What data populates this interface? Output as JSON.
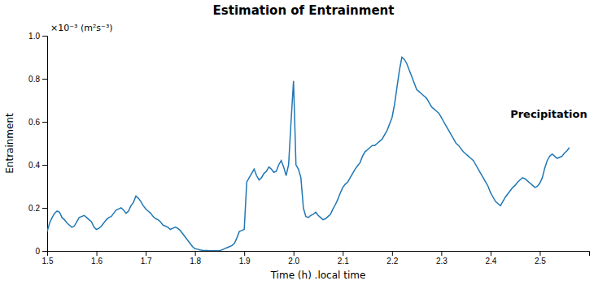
{
  "chart_data": {
    "type": "line",
    "title": "Estimation of Entrainment",
    "x_label": "Time (h) .local time",
    "y_label": "Entrainment",
    "annotations": [
      {
        "text": "×10⁻³ (m²s⁻³)"
      },
      {
        "text": "Precipitation",
        "x": 2.44,
        "y": 0.62
      }
    ],
    "xlim": [
      1.5,
      2.6
    ],
    "ylim": [
      0,
      1.0
    ],
    "xticks": [
      1.5,
      1.6,
      1.7,
      1.8,
      1.9,
      {
        "value": 2.0,
        "label": "2.0"
      },
      2.1,
      2.2,
      2.3,
      2.4,
      2.5
    ],
    "yticks": [
      0,
      0.2,
      0.4,
      0.6,
      0.8,
      {
        "value": 1.0,
        "label": "1.0"
      }
    ],
    "grid": false,
    "x": [
      1.5,
      1.505,
      1.51,
      1.515,
      1.52,
      1.525,
      1.53,
      1.535,
      1.54,
      1.545,
      1.55,
      1.555,
      1.56,
      1.565,
      1.57,
      1.575,
      1.58,
      1.585,
      1.59,
      1.595,
      1.6,
      1.605,
      1.61,
      1.615,
      1.62,
      1.625,
      1.63,
      1.635,
      1.64,
      1.645,
      1.65,
      1.655,
      1.66,
      1.665,
      1.67,
      1.675,
      1.68,
      1.685,
      1.69,
      1.695,
      1.7,
      1.705,
      1.71,
      1.715,
      1.72,
      1.725,
      1.73,
      1.735,
      1.74,
      1.745,
      1.75,
      1.755,
      1.76,
      1.765,
      1.77,
      1.775,
      1.78,
      1.785,
      1.79,
      1.795,
      1.8,
      1.805,
      1.81,
      1.815,
      1.82,
      1.825,
      1.83,
      1.835,
      1.84,
      1.845,
      1.85,
      1.855,
      1.86,
      1.865,
      1.87,
      1.875,
      1.88,
      1.885,
      1.89,
      1.895,
      1.9,
      1.905,
      1.91,
      1.915,
      1.92,
      1.925,
      1.93,
      1.935,
      1.94,
      1.945,
      1.95,
      1.955,
      1.96,
      1.965,
      1.97,
      1.975,
      1.98,
      1.985,
      1.99,
      1.995,
      2.0,
      2.005,
      2.01,
      2.015,
      2.02,
      2.025,
      2.03,
      2.035,
      2.04,
      2.045,
      2.05,
      2.055,
      2.06,
      2.065,
      2.07,
      2.075,
      2.08,
      2.085,
      2.09,
      2.095,
      2.1,
      2.105,
      2.11,
      2.115,
      2.12,
      2.125,
      2.13,
      2.135,
      2.14,
      2.145,
      2.15,
      2.155,
      2.16,
      2.165,
      2.17,
      2.175,
      2.18,
      2.185,
      2.19,
      2.195,
      2.2,
      2.205,
      2.21,
      2.215,
      2.22,
      2.225,
      2.23,
      2.235,
      2.24,
      2.245,
      2.25,
      2.255,
      2.26,
      2.265,
      2.27,
      2.275,
      2.28,
      2.285,
      2.29,
      2.295,
      2.3,
      2.305,
      2.31,
      2.315,
      2.32,
      2.325,
      2.33,
      2.335,
      2.34,
      2.345,
      2.35,
      2.355,
      2.36,
      2.365,
      2.37,
      2.375,
      2.38,
      2.385,
      2.39,
      2.395,
      2.4,
      2.405,
      2.41,
      2.415,
      2.42,
      2.425,
      2.43,
      2.435,
      2.44,
      2.445,
      2.45,
      2.455,
      2.46,
      2.465,
      2.47,
      2.475,
      2.48,
      2.485,
      2.49,
      2.495,
      2.5,
      2.505,
      2.51,
      2.515,
      2.52,
      2.525,
      2.53,
      2.535,
      2.54,
      2.545,
      2.55,
      2.555,
      2.56
    ],
    "values": [
      0.09,
      0.13,
      0.155,
      0.175,
      0.185,
      0.18,
      0.155,
      0.145,
      0.13,
      0.12,
      0.11,
      0.115,
      0.135,
      0.155,
      0.16,
      0.165,
      0.155,
      0.145,
      0.135,
      0.11,
      0.1,
      0.105,
      0.115,
      0.13,
      0.145,
      0.155,
      0.16,
      0.175,
      0.19,
      0.195,
      0.2,
      0.19,
      0.175,
      0.185,
      0.21,
      0.225,
      0.255,
      0.245,
      0.23,
      0.21,
      0.195,
      0.185,
      0.175,
      0.16,
      0.15,
      0.145,
      0.135,
      0.12,
      0.115,
      0.11,
      0.1,
      0.105,
      0.11,
      0.105,
      0.095,
      0.08,
      0.065,
      0.05,
      0.035,
      0.02,
      0.01,
      0.008,
      0.005,
      0.003,
      0.002,
      0.002,
      0.001,
      0.001,
      0.001,
      0.001,
      0.001,
      0.005,
      0.01,
      0.015,
      0.02,
      0.025,
      0.035,
      0.06,
      0.09,
      0.095,
      0.1,
      0.32,
      0.34,
      0.36,
      0.38,
      0.35,
      0.33,
      0.34,
      0.36,
      0.37,
      0.39,
      0.38,
      0.365,
      0.37,
      0.4,
      0.42,
      0.39,
      0.35,
      0.4,
      0.6,
      0.79,
      0.4,
      0.38,
      0.34,
      0.2,
      0.16,
      0.155,
      0.165,
      0.17,
      0.18,
      0.165,
      0.155,
      0.145,
      0.15,
      0.16,
      0.17,
      0.195,
      0.215,
      0.24,
      0.27,
      0.295,
      0.31,
      0.32,
      0.34,
      0.36,
      0.38,
      0.395,
      0.41,
      0.44,
      0.46,
      0.47,
      0.48,
      0.49,
      0.49,
      0.5,
      0.51,
      0.52,
      0.54,
      0.56,
      0.59,
      0.62,
      0.68,
      0.76,
      0.84,
      0.9,
      0.89,
      0.87,
      0.84,
      0.81,
      0.78,
      0.75,
      0.74,
      0.73,
      0.72,
      0.71,
      0.69,
      0.67,
      0.66,
      0.65,
      0.64,
      0.62,
      0.6,
      0.58,
      0.56,
      0.54,
      0.52,
      0.5,
      0.49,
      0.475,
      0.46,
      0.45,
      0.44,
      0.43,
      0.42,
      0.4,
      0.38,
      0.36,
      0.34,
      0.32,
      0.3,
      0.27,
      0.25,
      0.23,
      0.22,
      0.21,
      0.23,
      0.25,
      0.265,
      0.28,
      0.295,
      0.305,
      0.32,
      0.33,
      0.34,
      0.335,
      0.325,
      0.315,
      0.305,
      0.295,
      0.3,
      0.315,
      0.34,
      0.385,
      0.42,
      0.44,
      0.45,
      0.44,
      0.43,
      0.435,
      0.44,
      0.455,
      0.465,
      0.48
    ]
  }
}
